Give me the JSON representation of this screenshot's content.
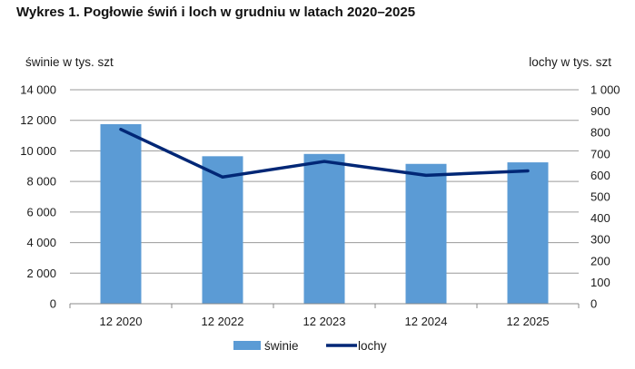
{
  "chart_data": {
    "type": "bar+line",
    "title": "Wykres 1. Pogłowie świń i loch w grudniu w latach 2020–2025",
    "categories": [
      "12 2020",
      "12 2022",
      "12 2023",
      "12 2024",
      "12 2025"
    ],
    "series": [
      {
        "name": "świnie",
        "type": "bar",
        "axis": "left",
        "color": "#5b9bd5",
        "values": [
          11750,
          9650,
          9800,
          9150,
          9250
        ]
      },
      {
        "name": "lochy",
        "type": "line",
        "axis": "right",
        "color": "#002776",
        "values": [
          815,
          592,
          665,
          600,
          621
        ]
      }
    ],
    "ylabel_left": "świnie w tys. szt",
    "ylabel_right": "lochy w tys. szt",
    "ylim_left": [
      0,
      14000
    ],
    "ylim_right": [
      0,
      1000
    ],
    "yticks_left": [
      "0",
      "2 000",
      "4 000",
      "6 000",
      "8 000",
      "10 000",
      "12 000",
      "14 000"
    ],
    "yticks_right": [
      "0",
      "100",
      "200",
      "300",
      "400",
      "500",
      "600",
      "700",
      "800",
      "900",
      "1 000"
    ],
    "grid": true,
    "legend": "bottom"
  }
}
